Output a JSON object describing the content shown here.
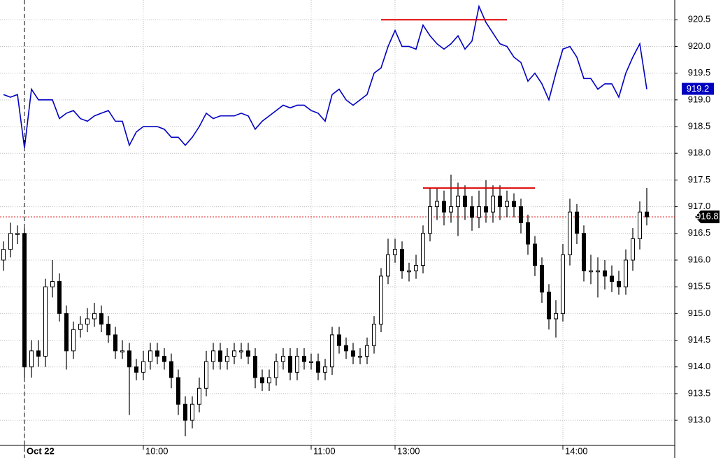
{
  "chart_data": {
    "type": "combo",
    "categories": [
      null,
      null,
      null,
      "Oct 22",
      null,
      null,
      null,
      null,
      null,
      null,
      null,
      null,
      null,
      null,
      null,
      null,
      null,
      null,
      null,
      null,
      "10:00",
      null,
      null,
      null,
      null,
      null,
      null,
      null,
      null,
      null,
      null,
      null,
      null,
      null,
      null,
      null,
      null,
      null,
      null,
      null,
      null,
      null,
      null,
      null,
      "11:00",
      null,
      null,
      null,
      null,
      null,
      null,
      null,
      null,
      null,
      null,
      null,
      "13:00",
      null,
      null,
      null,
      null,
      null,
      null,
      null,
      null,
      null,
      null,
      null,
      null,
      null,
      null,
      null,
      null,
      null,
      null,
      null,
      null,
      null,
      null,
      null,
      "14:00",
      null,
      null,
      null,
      null,
      null,
      null,
      null,
      null,
      null,
      null,
      null,
      null
    ],
    "ylim": [
      912.53,
      920.87
    ],
    "yticks": [
      {
        "value": 913,
        "label": "913.0"
      },
      913.5,
      {
        "value": 914,
        "label": "914.0"
      },
      914.5,
      {
        "value": 915,
        "label": "915.0"
      },
      915.5,
      {
        "value": 916,
        "label": "916.0"
      },
      916.5,
      {
        "value": 917,
        "label": "917.0"
      },
      917.5,
      {
        "value": 918,
        "label": "918.0"
      },
      918.5,
      {
        "value": 919,
        "label": "919.0"
      },
      919.5,
      {
        "value": 920,
        "label": "920.0"
      },
      920.5
    ],
    "grid": true,
    "day_breaks": [
      3
    ],
    "series": [
      {
        "type": "line",
        "color": "#0000c0",
        "last": 919.2,
        "values": [
          919.1,
          919.05,
          919.1,
          918.1,
          919.2,
          919.0,
          919.0,
          919.0,
          918.65,
          918.75,
          918.8,
          918.65,
          918.6,
          918.7,
          918.75,
          918.8,
          918.6,
          918.6,
          918.15,
          918.4,
          918.5,
          918.5,
          918.5,
          918.45,
          918.3,
          918.3,
          918.15,
          918.3,
          918.5,
          918.75,
          918.65,
          918.7,
          918.7,
          918.7,
          918.75,
          918.7,
          918.45,
          918.6,
          918.7,
          918.8,
          918.9,
          918.85,
          918.9,
          918.9,
          918.8,
          918.75,
          918.6,
          919.1,
          919.2,
          919.0,
          918.9,
          919.0,
          919.1,
          919.5,
          919.6,
          920.0,
          920.3,
          920.0,
          920.0,
          919.95,
          920.4,
          920.2,
          920.05,
          919.95,
          920.05,
          920.2,
          919.95,
          920.1,
          920.75,
          920.45,
          920.25,
          920.05,
          920.0,
          919.8,
          919.7,
          919.35,
          919.5,
          919.3,
          919.0,
          919.5,
          919.95,
          920.0,
          919.8,
          919.4,
          919.4,
          919.2,
          919.3,
          919.3,
          919.05,
          919.5,
          919.8,
          920.05,
          919.2
        ]
      },
      {
        "type": "candlestick",
        "color": "#000000",
        "last": 916.81,
        "last_line_color": "#e00000",
        "open": [
          916.0,
          916.2,
          916.5,
          916.5,
          914.0,
          914.3,
          914.2,
          915.5,
          915.6,
          915.0,
          914.3,
          914.7,
          914.8,
          914.9,
          915.0,
          914.8,
          914.6,
          914.3,
          914.3,
          914.0,
          913.9,
          914.1,
          914.3,
          914.2,
          914.1,
          913.8,
          913.3,
          913.0,
          913.3,
          913.6,
          914.1,
          914.3,
          914.1,
          914.2,
          914.3,
          914.3,
          914.2,
          913.8,
          913.7,
          913.8,
          914.1,
          914.2,
          913.9,
          914.2,
          914.1,
          914.1,
          913.9,
          914.0,
          914.6,
          914.4,
          914.3,
          914.2,
          914.2,
          914.4,
          914.8,
          915.7,
          916.1,
          916.2,
          915.8,
          915.8,
          915.9,
          916.5,
          917.0,
          917.1,
          916.9,
          917.0,
          917.2,
          917.0,
          916.8,
          917.0,
          916.9,
          917.2,
          917.0,
          917.1,
          917.0,
          916.7,
          916.3,
          915.9,
          915.4,
          914.9,
          915.0,
          916.1,
          916.9,
          916.5,
          915.8,
          915.8,
          915.8,
          915.7,
          915.6,
          915.5,
          916.0,
          916.4,
          916.9
        ],
        "high": [
          916.35,
          916.7,
          916.65,
          916.6,
          914.5,
          914.5,
          915.65,
          916.0,
          915.75,
          915.15,
          914.85,
          914.95,
          915.1,
          915.2,
          915.15,
          914.95,
          914.75,
          914.5,
          914.45,
          914.15,
          914.3,
          914.45,
          914.45,
          914.35,
          914.25,
          913.95,
          913.45,
          913.45,
          913.8,
          914.3,
          914.45,
          914.45,
          914.35,
          914.45,
          914.45,
          914.45,
          914.35,
          913.95,
          913.95,
          914.25,
          914.35,
          914.35,
          914.35,
          914.35,
          914.25,
          914.25,
          914.15,
          914.75,
          914.75,
          914.55,
          914.45,
          914.35,
          914.55,
          914.95,
          915.85,
          916.4,
          916.4,
          916.35,
          915.95,
          916.1,
          916.65,
          917.35,
          917.35,
          917.3,
          917.6,
          917.45,
          917.4,
          917.2,
          917.3,
          917.5,
          917.4,
          917.4,
          917.3,
          917.25,
          917.15,
          916.85,
          916.45,
          916.05,
          915.55,
          915.25,
          916.3,
          917.15,
          917.05,
          916.65,
          916.1,
          916.05,
          916.0,
          915.9,
          915.8,
          916.2,
          916.6,
          917.1,
          917.35
        ],
        "low": [
          915.8,
          916.05,
          916.3,
          913.8,
          913.8,
          914.0,
          914.0,
          915.3,
          914.85,
          913.95,
          914.15,
          914.55,
          914.65,
          914.75,
          914.65,
          914.45,
          914.15,
          914.15,
          913.1,
          913.75,
          913.75,
          913.95,
          914.05,
          913.95,
          913.6,
          913.1,
          912.7,
          912.85,
          913.15,
          913.45,
          913.95,
          913.95,
          913.95,
          914.05,
          914.15,
          914.05,
          913.6,
          913.55,
          913.55,
          913.65,
          913.95,
          913.75,
          913.75,
          913.95,
          913.95,
          913.75,
          913.75,
          913.85,
          914.25,
          914.15,
          914.05,
          914.05,
          914.05,
          914.25,
          914.65,
          915.55,
          915.95,
          915.65,
          915.6,
          915.65,
          915.75,
          916.35,
          916.75,
          916.65,
          916.7,
          916.45,
          916.75,
          916.55,
          916.6,
          916.7,
          916.7,
          916.75,
          916.8,
          916.8,
          916.5,
          916.1,
          915.7,
          915.2,
          914.7,
          914.55,
          914.85,
          915.9,
          916.3,
          915.6,
          915.55,
          915.3,
          915.45,
          915.4,
          915.35,
          915.35,
          915.8,
          916.2,
          916.65
        ],
        "close": [
          916.2,
          916.5,
          916.5,
          914.0,
          914.3,
          914.2,
          915.5,
          915.6,
          915.0,
          914.3,
          914.7,
          914.8,
          914.9,
          915.0,
          914.8,
          914.6,
          914.3,
          914.3,
          914.0,
          913.9,
          914.1,
          914.3,
          914.2,
          914.1,
          913.8,
          913.3,
          913.0,
          913.3,
          913.6,
          914.1,
          914.3,
          914.1,
          914.2,
          914.3,
          914.3,
          914.2,
          913.8,
          913.7,
          913.8,
          914.1,
          914.2,
          913.9,
          914.2,
          914.1,
          914.1,
          913.9,
          914.0,
          914.6,
          914.4,
          914.3,
          914.2,
          914.2,
          914.4,
          914.8,
          915.7,
          916.1,
          916.2,
          915.8,
          915.8,
          915.9,
          916.5,
          917.0,
          917.1,
          916.9,
          917.0,
          917.2,
          917.0,
          916.8,
          917.0,
          916.9,
          917.2,
          917.0,
          917.1,
          917.0,
          916.7,
          916.3,
          915.9,
          915.4,
          914.9,
          915.0,
          916.1,
          916.9,
          916.5,
          915.8,
          915.8,
          915.8,
          915.7,
          915.6,
          915.5,
          916.0,
          916.4,
          916.9,
          916.81
        ]
      }
    ],
    "levels": [
      {
        "value": 920.5,
        "start": 54,
        "end": 72,
        "color": "#e00000"
      },
      {
        "value": 917.35,
        "start": 60,
        "end": 76,
        "color": "#e00000"
      }
    ]
  }
}
